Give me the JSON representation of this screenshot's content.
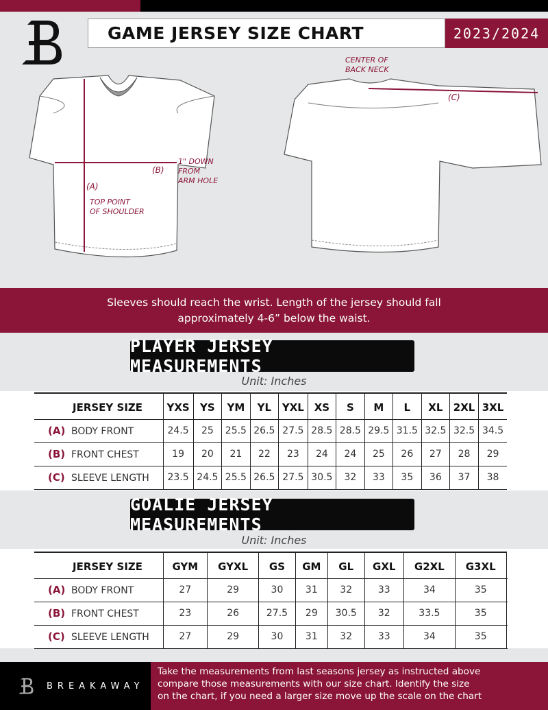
{
  "header": {
    "title": "GAME JERSEY SIZE CHART",
    "season": "2023/2024"
  },
  "diagram": {
    "notes": {
      "center_back_neck": [
        "CENTER OF",
        "BACK NECK"
      ],
      "arm_hole": [
        "1\" DOWN",
        "FROM",
        "ARM HOLE"
      ],
      "shoulder": [
        "TOP POINT",
        "OF SHOULDER"
      ]
    },
    "labels": {
      "a": "(A)",
      "b": "(B)",
      "c": "(C)"
    }
  },
  "instructions": [
    "Sleeves should reach the wrist. Length of the jersey should fall",
    "approximately 4-6” below the waist."
  ],
  "player": {
    "title": "PLAYER JERSEY MEASUREMENTS",
    "unit": "Unit: Inches",
    "size_header": "JERSEY SIZE",
    "sizes": [
      "YXS",
      "YS",
      "YM",
      "YL",
      "YXL",
      "XS",
      "S",
      "M",
      "L",
      "XL",
      "2XL",
      "3XL"
    ],
    "rows": [
      {
        "letter": "(A)",
        "label": "BODY FRONT",
        "values": [
          "24.5",
          "25",
          "25.5",
          "26.5",
          "27.5",
          "28.5",
          "28.5",
          "29.5",
          "31.5",
          "32.5",
          "32.5",
          "34.5"
        ]
      },
      {
        "letter": "(B)",
        "label": "FRONT CHEST",
        "values": [
          "19",
          "20",
          "21",
          "22",
          "23",
          "24",
          "24",
          "25",
          "26",
          "27",
          "28",
          "29"
        ]
      },
      {
        "letter": "(C)",
        "label": "SLEEVE LENGTH",
        "values": [
          "23.5",
          "24.5",
          "25.5",
          "26.5",
          "27.5",
          "30.5",
          "32",
          "33",
          "35",
          "36",
          "37",
          "38"
        ]
      }
    ]
  },
  "goalie": {
    "title": "GOALIE JERSEY MEASUREMENTS",
    "unit": "Unit: Inches",
    "size_header": "JERSEY SIZE",
    "sizes": [
      "GYM",
      "GYXL",
      "GS",
      "GM",
      "GL",
      "GXL",
      "G2XL",
      "G3XL",
      ""
    ],
    "rows": [
      {
        "letter": "(A)",
        "label": "BODY FRONT",
        "values": [
          "27",
          "29",
          "30",
          "31",
          "32",
          "33",
          "34",
          "35",
          ""
        ]
      },
      {
        "letter": "(B)",
        "label": "FRONT CHEST",
        "values": [
          "23",
          "26",
          "27.5",
          "29",
          "30.5",
          "32",
          "33.5",
          "35",
          ""
        ]
      },
      {
        "letter": "(C)",
        "label": "SLEEVE LENGTH",
        "values": [
          "27",
          "29",
          "30",
          "31",
          "32",
          "33",
          "34",
          "35",
          ""
        ]
      }
    ]
  },
  "footer": {
    "brand": "BREAKAWAY",
    "text": [
      "Take the measurements from last seasons jersey as instructed above",
      "compare those measurements  with our size chart. Identify the size",
      "on the chart, if you need a larger size move up the scale on the chart"
    ]
  },
  "colors": {
    "accent": "#8a1538",
    "dark": "#0b0b0b",
    "panel": "#e6e7e8"
  }
}
